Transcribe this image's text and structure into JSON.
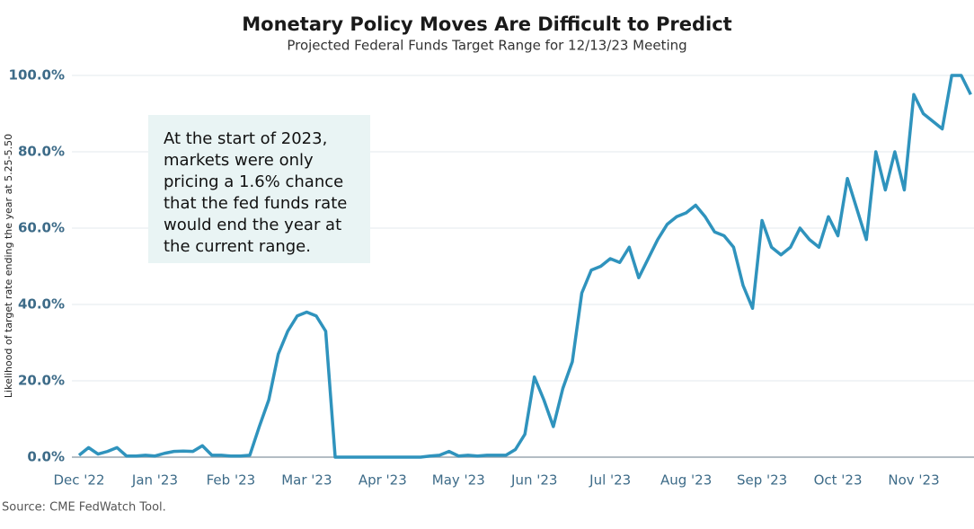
{
  "chart_data": {
    "type": "line",
    "title": "Monetary Policy Moves Are Difficult to Predict",
    "subtitle": "Projected Federal Funds Target Range for 12/13/23 Meeting",
    "y_label": "Likelihood of target rate ending the year at 5.25-5.50",
    "source": "Source: CME FedWatch Tool.",
    "annotation": [
      "At the start of 2023,",
      "markets were only",
      "pricing a 1.6% chance",
      "that the fed funds rate",
      "would end the year at",
      "the current range."
    ],
    "categories": [
      "Dec '22",
      null,
      null,
      null,
      null,
      null,
      null,
      null,
      "Jan '23",
      null,
      null,
      null,
      null,
      null,
      null,
      null,
      "Feb '23",
      null,
      null,
      null,
      null,
      null,
      null,
      null,
      "Mar '23",
      null,
      null,
      null,
      null,
      null,
      null,
      null,
      "Apr '23",
      null,
      null,
      null,
      null,
      null,
      null,
      null,
      "May '23",
      null,
      null,
      null,
      null,
      null,
      null,
      null,
      "Jun '23",
      null,
      null,
      null,
      null,
      null,
      null,
      null,
      "Jul '23",
      null,
      null,
      null,
      null,
      null,
      null,
      null,
      "Aug '23",
      null,
      null,
      null,
      null,
      null,
      null,
      null,
      "Sep '23",
      null,
      null,
      null,
      null,
      null,
      null,
      null,
      "Oct '23",
      null,
      null,
      null,
      null,
      null,
      null,
      null,
      "Nov '23",
      null,
      null,
      null,
      null,
      null,
      null
    ],
    "series": [
      {
        "name": "Likelihood",
        "color": "#2f93bd",
        "values": [
          0.5,
          2.5,
          0.8,
          1.5,
          2.5,
          0.3,
          0.3,
          0.5,
          0.3,
          1,
          1.5,
          1.6,
          1.5,
          3,
          0.5,
          0.5,
          0.3,
          0.3,
          0.5,
          8,
          15,
          27,
          33,
          37,
          38,
          37,
          33,
          0,
          0,
          0,
          0,
          0,
          0,
          0,
          0,
          0,
          0,
          0.3,
          0.5,
          1.5,
          0.3,
          0.5,
          0.3,
          0.5,
          0.5,
          0.5,
          2,
          6,
          21,
          15,
          8,
          18,
          25,
          43,
          49,
          50,
          52,
          51,
          55,
          47,
          52,
          57,
          61,
          63,
          64,
          66,
          63,
          59,
          58,
          55,
          45,
          39,
          62,
          55,
          53,
          55,
          60,
          57,
          55,
          63,
          58,
          73,
          65,
          57,
          80,
          70,
          80,
          70,
          95,
          90,
          88,
          86,
          100,
          100,
          95
        ]
      }
    ],
    "ylim": [
      0,
      100
    ],
    "yticks": [
      {
        "value": 0,
        "label": "0.0%"
      },
      {
        "value": 20,
        "label": "20.0%"
      },
      {
        "value": 40,
        "label": "40.0%"
      },
      {
        "value": 60,
        "label": "60.0%"
      },
      {
        "value": 80,
        "label": "80.0%"
      },
      {
        "value": 100,
        "label": "100.0%"
      }
    ],
    "grid": true
  }
}
